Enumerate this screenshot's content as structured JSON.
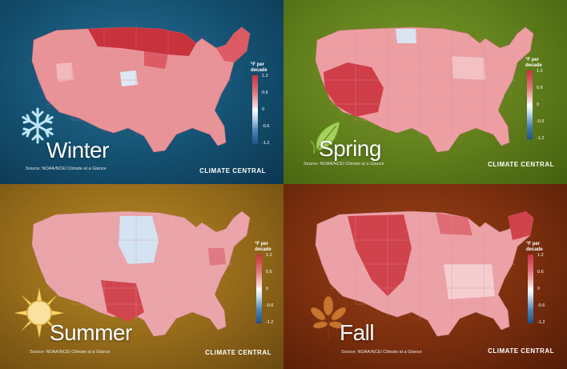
{
  "panels": [
    {
      "id": "winter",
      "season": "Winter",
      "icon": "snowflake-icon",
      "background": "#145070",
      "source": "Source: NOAA/NCEI Climate at a Glance",
      "brand": "CLIMATE CENTRAL",
      "legend": {
        "title_line1": "°F per",
        "title_line2": "decade",
        "ticks": [
          "1.2",
          "0.6",
          "0",
          "-0.6",
          "-1.2"
        ]
      },
      "palette": {
        "base": "#e89398",
        "light": "#f2b8bd",
        "warm": "#dc5a63",
        "hot": "#c8323c",
        "cool": "#dce9f3"
      }
    },
    {
      "id": "spring",
      "season": "Spring",
      "icon": "leaf-icon",
      "background": "#5f7d1b",
      "source": "Source: NOAA/NCEI Climate at a Glance",
      "brand": "CLIMATE CENTRAL",
      "legend": {
        "title_line1": "°F per",
        "title_line2": "decade",
        "ticks": [
          "1.2",
          "0.6",
          "0",
          "-0.6",
          "-1.2"
        ]
      },
      "palette": {
        "base": "#ec9ea3",
        "light": "#f3c0c4",
        "warm": "#df6a72",
        "hot": "#cf3e48",
        "cool": "#d9e6f2"
      }
    },
    {
      "id": "summer",
      "season": "Summer",
      "icon": "sun-icon",
      "background": "#93691a",
      "source": "Source: NOAA/NCEI Climate at a Glance",
      "brand": "CLIMATE CENTRAL",
      "legend": {
        "title_line1": "°F per",
        "title_line2": "decade",
        "ticks": [
          "1.2",
          "0.6",
          "0",
          "-0.6",
          "-1.2"
        ]
      },
      "palette": {
        "base": "#eba5aa",
        "light": "#f4c7ca",
        "warm": "#e07a82",
        "hot": "#d1454f",
        "cool": "#d3e3f1"
      }
    },
    {
      "id": "fall",
      "season": "Fall",
      "icon": "autumn-leaf-icon",
      "background": "#7a2e0e",
      "source": "Source: NOAA/NCEI Climate at a Glance",
      "brand": "CLIMATE CENTRAL",
      "legend": {
        "title_line1": "°F per",
        "title_line2": "decade",
        "ticks": [
          "1.2",
          "0.6",
          "0",
          "-0.6",
          "-1.2"
        ]
      },
      "palette": {
        "base": "#eba1a6",
        "light": "#f5cdd0",
        "warm": "#df6c74",
        "hot": "#d0424c",
        "cool": "#dfe9f2"
      }
    }
  ]
}
